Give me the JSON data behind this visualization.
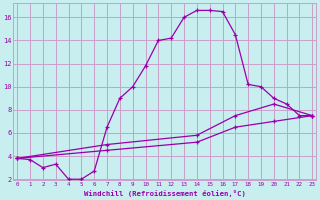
{
  "xlabel": "Windchill (Refroidissement éolien,°C)",
  "background_color": "#c8eef0",
  "grid_color": "#c8a0c8",
  "line_color": "#9900aa",
  "line1_x": [
    0,
    1,
    2,
    3,
    4,
    5,
    6,
    7,
    8,
    9,
    10,
    11,
    12,
    13,
    14,
    15,
    16,
    17,
    18,
    19,
    20,
    21,
    22,
    23
  ],
  "line1_y": [
    3.8,
    3.7,
    3.0,
    3.3,
    2.0,
    2.0,
    2.7,
    6.5,
    9.0,
    10.0,
    11.8,
    14.0,
    14.2,
    16.0,
    16.6,
    16.6,
    16.5,
    14.5,
    10.2,
    10.0,
    9.0,
    8.5,
    7.5,
    7.5
  ],
  "line2_x": [
    0,
    23
  ],
  "line2_y": [
    3.8,
    7.5
  ],
  "line3_x": [
    0,
    23
  ],
  "line3_y": [
    3.8,
    7.5
  ],
  "line2_markers_x": [
    0,
    7,
    14,
    17,
    20,
    23
  ],
  "line2_markers_y": [
    3.8,
    4.5,
    5.2,
    6.5,
    7.0,
    7.5
  ],
  "line3_markers_x": [
    0,
    7,
    14,
    17,
    20,
    23
  ],
  "line3_markers_y": [
    3.8,
    5.0,
    5.8,
    7.5,
    8.5,
    7.5
  ],
  "ylim": [
    2,
    17
  ],
  "xlim": [
    -0.3,
    23.3
  ],
  "yticks": [
    2,
    4,
    6,
    8,
    10,
    12,
    14,
    16
  ],
  "xticks": [
    0,
    1,
    2,
    3,
    4,
    5,
    6,
    7,
    8,
    9,
    10,
    11,
    12,
    13,
    14,
    15,
    16,
    17,
    18,
    19,
    20,
    21,
    22,
    23
  ]
}
